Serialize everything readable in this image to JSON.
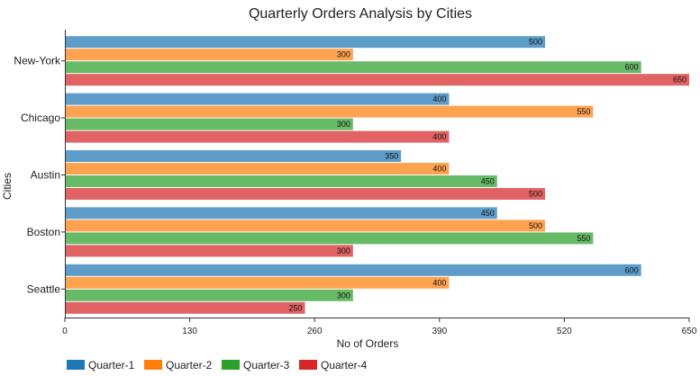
{
  "chart_data": {
    "type": "bar",
    "orientation": "horizontal",
    "title": "Quarterly Orders Analysis by Cities",
    "xlabel": "No of Orders",
    "ylabel": "Cities",
    "categories": [
      "New-York",
      "Chicago",
      "Austin",
      "Boston",
      "Seattle"
    ],
    "xlim": [
      0,
      650
    ],
    "xticks": [
      0,
      130,
      260,
      390,
      520,
      650
    ],
    "grid": false,
    "legend_position": "bottom-left",
    "series": [
      {
        "name": "Quarter-1",
        "color": "#1f77b4",
        "values": [
          500,
          400,
          350,
          450,
          600
        ]
      },
      {
        "name": "Quarter-2",
        "color": "#ff7f0e",
        "values": [
          300,
          550,
          400,
          500,
          400
        ]
      },
      {
        "name": "Quarter-3",
        "color": "#2ca02c",
        "values": [
          600,
          300,
          450,
          550,
          300
        ]
      },
      {
        "name": "Quarter-4",
        "color": "#d62728",
        "values": [
          650,
          400,
          500,
          300,
          250
        ]
      }
    ]
  }
}
